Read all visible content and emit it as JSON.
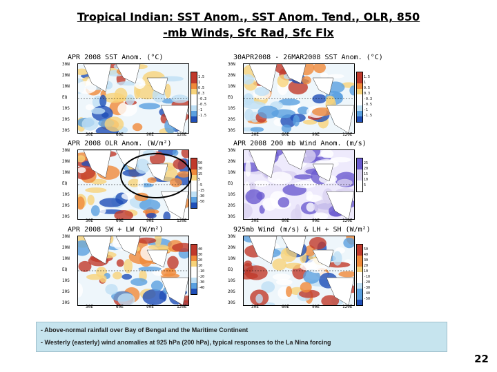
{
  "slide": {
    "title_line1": "Tropical Indian: SST Anom., SST Anom. Tend., OLR, 850",
    "title_line2": "-mb Winds, Sfc Rad, Sfc Flx",
    "page_number": "22"
  },
  "panels": [
    {
      "id": "sst",
      "title": "APR 2008 SST Anom. (°C)",
      "lats": [
        "30N",
        "20N",
        "10N",
        "EQ",
        "10S",
        "20S",
        "30S"
      ],
      "lons": [
        "30E",
        "60E",
        "90E",
        "120E"
      ],
      "scale": [
        "1.5",
        "1",
        "0.5",
        "0.3",
        "-0.3",
        "-0.5",
        "-1",
        "-1.5"
      ],
      "palette": "diverging"
    },
    {
      "id": "sst-tend",
      "title": "30APR2008 - 26MAR2008 SST Anom. (°C)",
      "lats": [
        "30N",
        "20N",
        "10N",
        "EQ",
        "10S",
        "20S",
        "30S"
      ],
      "lons": [
        "30E",
        "60E",
        "90E",
        "120E"
      ],
      "scale": [
        "1.5",
        "1",
        "0.5",
        "0.3",
        "-0.3",
        "-0.5",
        "-1",
        "-1.5"
      ],
      "palette": "diverging"
    },
    {
      "id": "olr",
      "title": "APR 2008 OLR Anom. (W/m²)",
      "lats": [
        "30N",
        "20N",
        "10N",
        "EQ",
        "10S",
        "20S",
        "30S"
      ],
      "lons": [
        "30E",
        "60E",
        "90E",
        "120E"
      ],
      "scale": [
        "50",
        "30",
        "15",
        "5",
        "-5",
        "-15",
        "-30",
        "-50"
      ],
      "palette": "olr"
    },
    {
      "id": "wind200",
      "title": "APR 2008 200 mb Wind Anom. (m/s)",
      "lats": [
        "30N",
        "20N",
        "10N",
        "EQ",
        "10S",
        "20S",
        "30S"
      ],
      "lons": [
        "30E",
        "60E",
        "90E",
        "120E"
      ],
      "scale": [
        "25",
        "20",
        "15",
        "10",
        "5"
      ],
      "palette": "wind"
    },
    {
      "id": "sw-lw",
      "title": "APR 2008 SW + LW (W/m²)",
      "lats": [
        "30N",
        "20N",
        "10N",
        "EQ",
        "10S",
        "20S",
        "30S"
      ],
      "lons": [
        "30E",
        "60E",
        "90E",
        "120E"
      ],
      "scale": [
        "40",
        "30",
        "20",
        "10",
        "-10",
        "-20",
        "-30",
        "-40"
      ],
      "palette": "diverging"
    },
    {
      "id": "wind925",
      "title": "925mb Wind (m/s) & LH + SH (W/m²)",
      "lats": [
        "30N",
        "20N",
        "10N",
        "EQ",
        "10S",
        "20S",
        "30S"
      ],
      "lons": [
        "30E",
        "60E",
        "90E",
        "120E"
      ],
      "scale": [
        "50",
        "40",
        "30",
        "20",
        "10",
        "-10",
        "-20",
        "-30",
        "-40",
        "-50"
      ],
      "palette": "diverging"
    }
  ],
  "notes": {
    "line1": "- Above-normal rainfall over Bay of Bengal and the Maritime Continent",
    "line2": "- Westerly (easterly) wind anomalies at 925 hPa (200 hPa), typical responses to the La Nina forcing"
  },
  "colors": {
    "warm_strong": "#c0392b",
    "warm": "#f08a3a",
    "warm_light": "#f7d37a",
    "neutral": "#ffffff",
    "cool_light": "#bfe0f5",
    "cool": "#5aa0e0",
    "cool_strong": "#1f4fb8",
    "wind_light": "#d9d2f0",
    "wind_strong": "#6b5bd0",
    "land": "#ffffff"
  }
}
